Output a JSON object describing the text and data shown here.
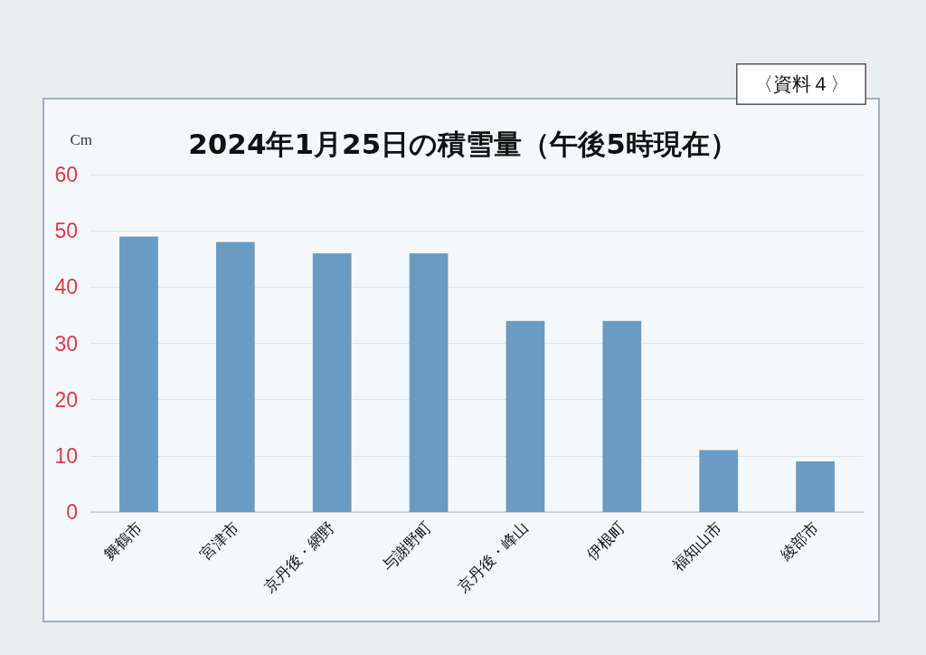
{
  "chart_data": {
    "type": "bar",
    "title": "2024年1月25日の積雪量（午後5時現在）",
    "ylabel": "Cm",
    "categories": [
      "舞鶴市",
      "宮津市",
      "京丹後・網野",
      "与謝野町",
      "京丹後・峰山",
      "伊根町",
      "福知山市",
      "綾部市"
    ],
    "values": [
      49,
      48,
      46,
      46,
      34,
      34,
      11,
      9
    ],
    "color": "#6a9bc2",
    "ylim": [
      0,
      60
    ],
    "yticks": [
      0,
      10,
      20,
      30,
      40,
      50,
      60
    ],
    "grid": "y",
    "annotations": [
      "〈資料４〉"
    ]
  }
}
